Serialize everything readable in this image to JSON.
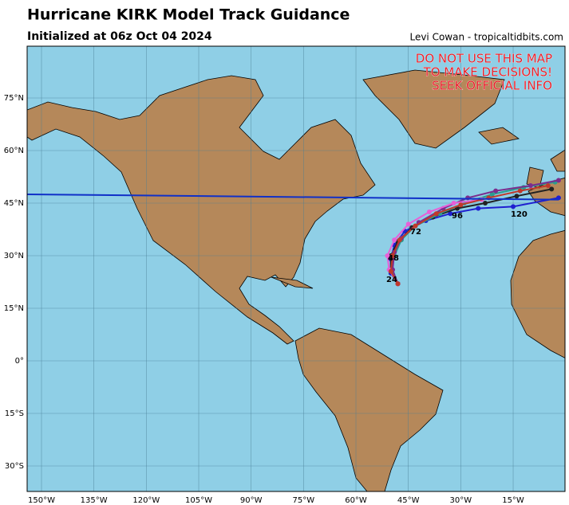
{
  "header": {
    "title": "Hurricane KIRK Model Track Guidance",
    "subtitle": "Initialized at 06z Oct 04 2024",
    "credit": "Levi Cowan - tropicaltidbits.com"
  },
  "map": {
    "warning": [
      "DO NOT USE THIS MAP",
      "TO MAKE DECISIONS!",
      "SEEK OFFICIAL INFO"
    ],
    "lon_ticks": [
      {
        "value": -150,
        "label": "150°W"
      },
      {
        "value": -135,
        "label": "135°W"
      },
      {
        "value": -120,
        "label": "120°W"
      },
      {
        "value": -105,
        "label": "105°W"
      },
      {
        "value": -90,
        "label": "90°W"
      },
      {
        "value": -75,
        "label": "75°W"
      },
      {
        "value": -60,
        "label": "60°W"
      },
      {
        "value": -45,
        "label": "45°W"
      },
      {
        "value": -30,
        "label": "30°W"
      },
      {
        "value": -15,
        "label": "15°W"
      }
    ],
    "lat_ticks": [
      {
        "value": 75,
        "label": "75°N"
      },
      {
        "value": 60,
        "label": "60°N"
      },
      {
        "value": 45,
        "label": "45°N"
      },
      {
        "value": 30,
        "label": "30°N"
      },
      {
        "value": 15,
        "label": "15°N"
      },
      {
        "value": 0,
        "label": "0°"
      },
      {
        "value": -15,
        "label": "15°S"
      },
      {
        "value": -30,
        "label": "30°S"
      }
    ],
    "hour_labels": [
      "24",
      "48",
      "72",
      "96",
      "120"
    ],
    "tracks": [
      {
        "color": "#1f1fd0",
        "lon": [
          -48,
          -50,
          -50,
          -49,
          -46,
          -40,
          -33,
          -25,
          -15,
          -2
        ],
        "lat": [
          22,
          25,
          29,
          33,
          37,
          40,
          42,
          43.5,
          44,
          46.5
        ]
      },
      {
        "color": "#222222",
        "lon": [
          -48,
          -50,
          -50,
          -48,
          -44,
          -38,
          -31,
          -23,
          -14,
          -4
        ],
        "lat": [
          22,
          25.5,
          30,
          34,
          38,
          41,
          43.5,
          45,
          47,
          49
        ]
      },
      {
        "color": "#2a9d8f",
        "lon": [
          -48,
          -50,
          -49,
          -47,
          -43,
          -36,
          -29,
          -21,
          -12,
          -3
        ],
        "lat": [
          22,
          26,
          30,
          34.5,
          38.5,
          42,
          45,
          47.5,
          49.5,
          51
        ]
      },
      {
        "color": "#7b2d8e",
        "lon": [
          -48,
          -49.5,
          -49,
          -47,
          -42,
          -35,
          -28,
          -20,
          -10,
          -2
        ],
        "lat": [
          22,
          26,
          31,
          35,
          39.5,
          43.5,
          46.5,
          48.5,
          50,
          51.5
        ]
      },
      {
        "color": "#e85fd8",
        "lon": [
          -48,
          -50.5,
          -51,
          -49,
          -45,
          -39,
          -32,
          -24
        ],
        "lat": [
          22,
          26,
          30,
          34.5,
          39,
          42.5,
          45,
          46
        ]
      },
      {
        "color": "#c0392b",
        "lon": [
          -48,
          -50,
          -49.5,
          -47.5,
          -43,
          -37,
          -30,
          -22,
          -13,
          -5
        ],
        "lat": [
          22,
          25.5,
          30,
          34.5,
          38.5,
          42,
          44.5,
          46.5,
          48.5,
          50
        ]
      },
      {
        "color": "#1030c8",
        "lon": [
          -154,
          -2
        ],
        "lat": [
          47.5,
          46
        ]
      }
    ]
  }
}
